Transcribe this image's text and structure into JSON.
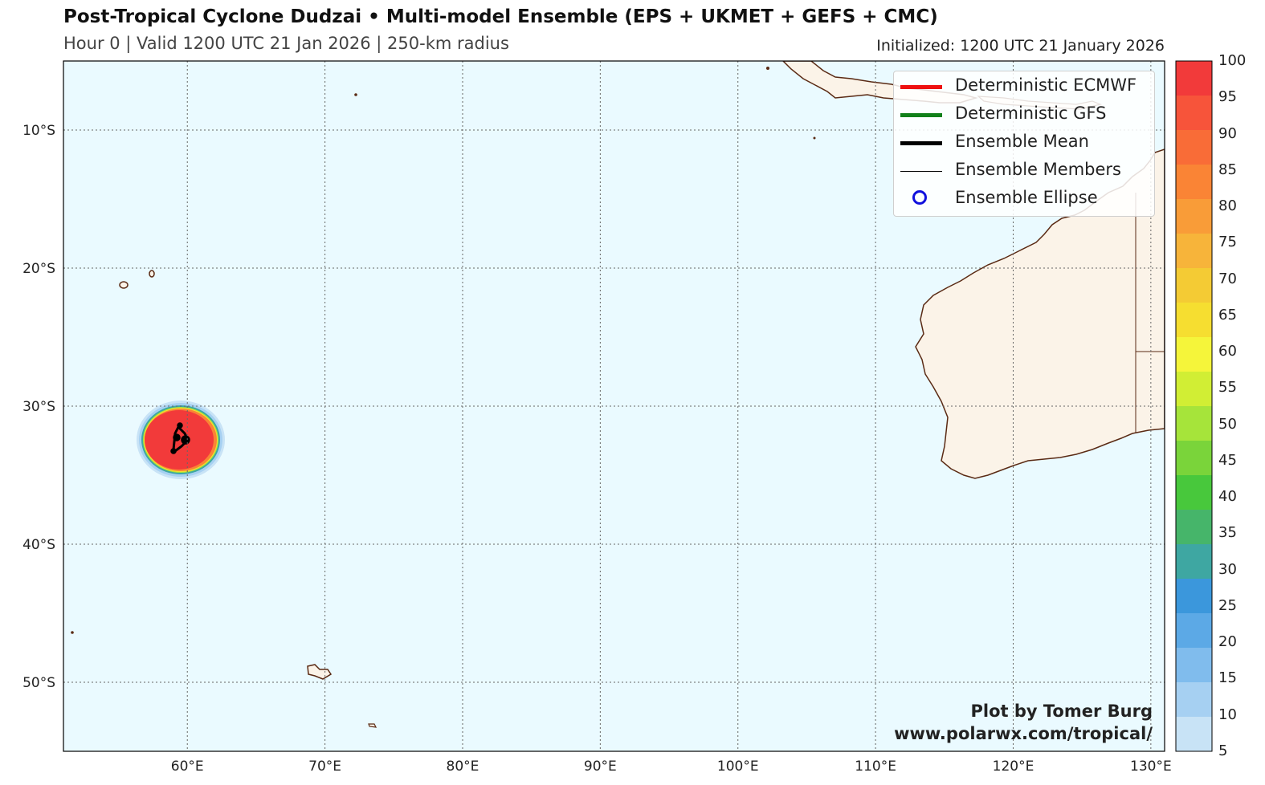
{
  "header": {
    "title": "Post-Tropical Cyclone Dudzai • Multi-model Ensemble (EPS + UKMET + GEFS + CMC)",
    "subtitle": "Hour 0 | Valid 1200 UTC 21 Jan 2026 | 250-km radius",
    "initialized": "Initialized: 1200 UTC 21 January 2026"
  },
  "map": {
    "lon_range": [
      51,
      131
    ],
    "lat_range": [
      -55,
      -5
    ],
    "ocean_color": "#eafaff",
    "land_color": "#fbf3e8",
    "coast_color": "#5a2a14",
    "lat_labels": [
      "10°S",
      "20°S",
      "30°S",
      "40°S",
      "50°S"
    ],
    "lon_labels": [
      "60°E",
      "70°E",
      "80°E",
      "90°E",
      "100°E",
      "110°E",
      "120°E",
      "130°E"
    ]
  },
  "storm": {
    "center_lon": 59.7,
    "center_lat": -32.5,
    "strike_probability": 100
  },
  "legend": [
    {
      "label": "Deterministic ECMWF",
      "color": "#ee1111",
      "style": "thick-line"
    },
    {
      "label": "Deterministic GFS",
      "color": "#11801a",
      "style": "thick-line"
    },
    {
      "label": "Ensemble Mean",
      "color": "#000000",
      "style": "thick-line"
    },
    {
      "label": "Ensemble Members",
      "color": "#000000",
      "style": "thin-line"
    },
    {
      "label": "Ensemble Ellipse",
      "color": "#1010dd",
      "style": "circle"
    }
  ],
  "colorbar": {
    "ticks": [
      "100",
      "95",
      "90",
      "85",
      "80",
      "75",
      "70",
      "65",
      "60",
      "55",
      "50",
      "45",
      "40",
      "35",
      "30",
      "25",
      "20",
      "15",
      "10",
      "5"
    ],
    "colors": [
      "#f23a3a",
      "#f7543a",
      "#f96c37",
      "#fa8435",
      "#f99c38",
      "#f7b43a",
      "#f4cb34",
      "#f6de30",
      "#f5f53a",
      "#d1ee34",
      "#a6e43a",
      "#7ad43a",
      "#48c83c",
      "#46b56a",
      "#3ea7a2",
      "#3b97dc",
      "#5ca9e6",
      "#80bced",
      "#a6d0f2",
      "#c8e3f6"
    ]
  },
  "credit": {
    "line1": "Plot by Tomer Burg",
    "line2": "www.polarwx.com/tropical/"
  }
}
